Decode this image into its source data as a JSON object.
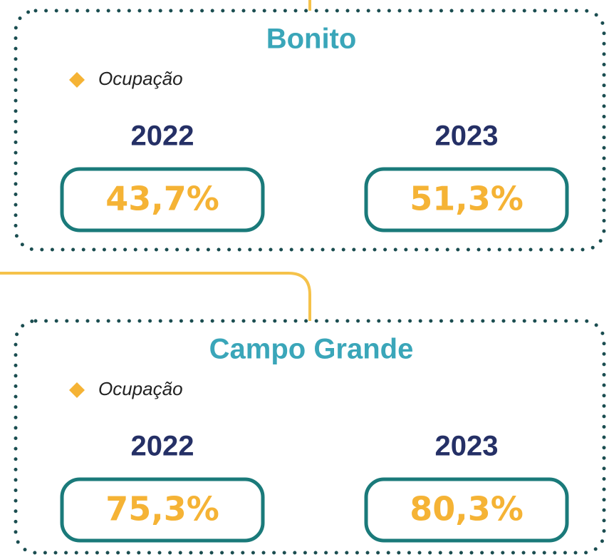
{
  "cards": [
    {
      "title": "Bonito",
      "metric": "Ocupação",
      "years": [
        {
          "year": "2022",
          "value": "43,7%"
        },
        {
          "year": "2023",
          "value": "51,3%"
        }
      ]
    },
    {
      "title": "Campo Grande",
      "metric": "Ocupação",
      "years": [
        {
          "year": "2022",
          "value": "75,3%"
        },
        {
          "year": "2023",
          "value": "80,3%"
        }
      ]
    }
  ]
}
